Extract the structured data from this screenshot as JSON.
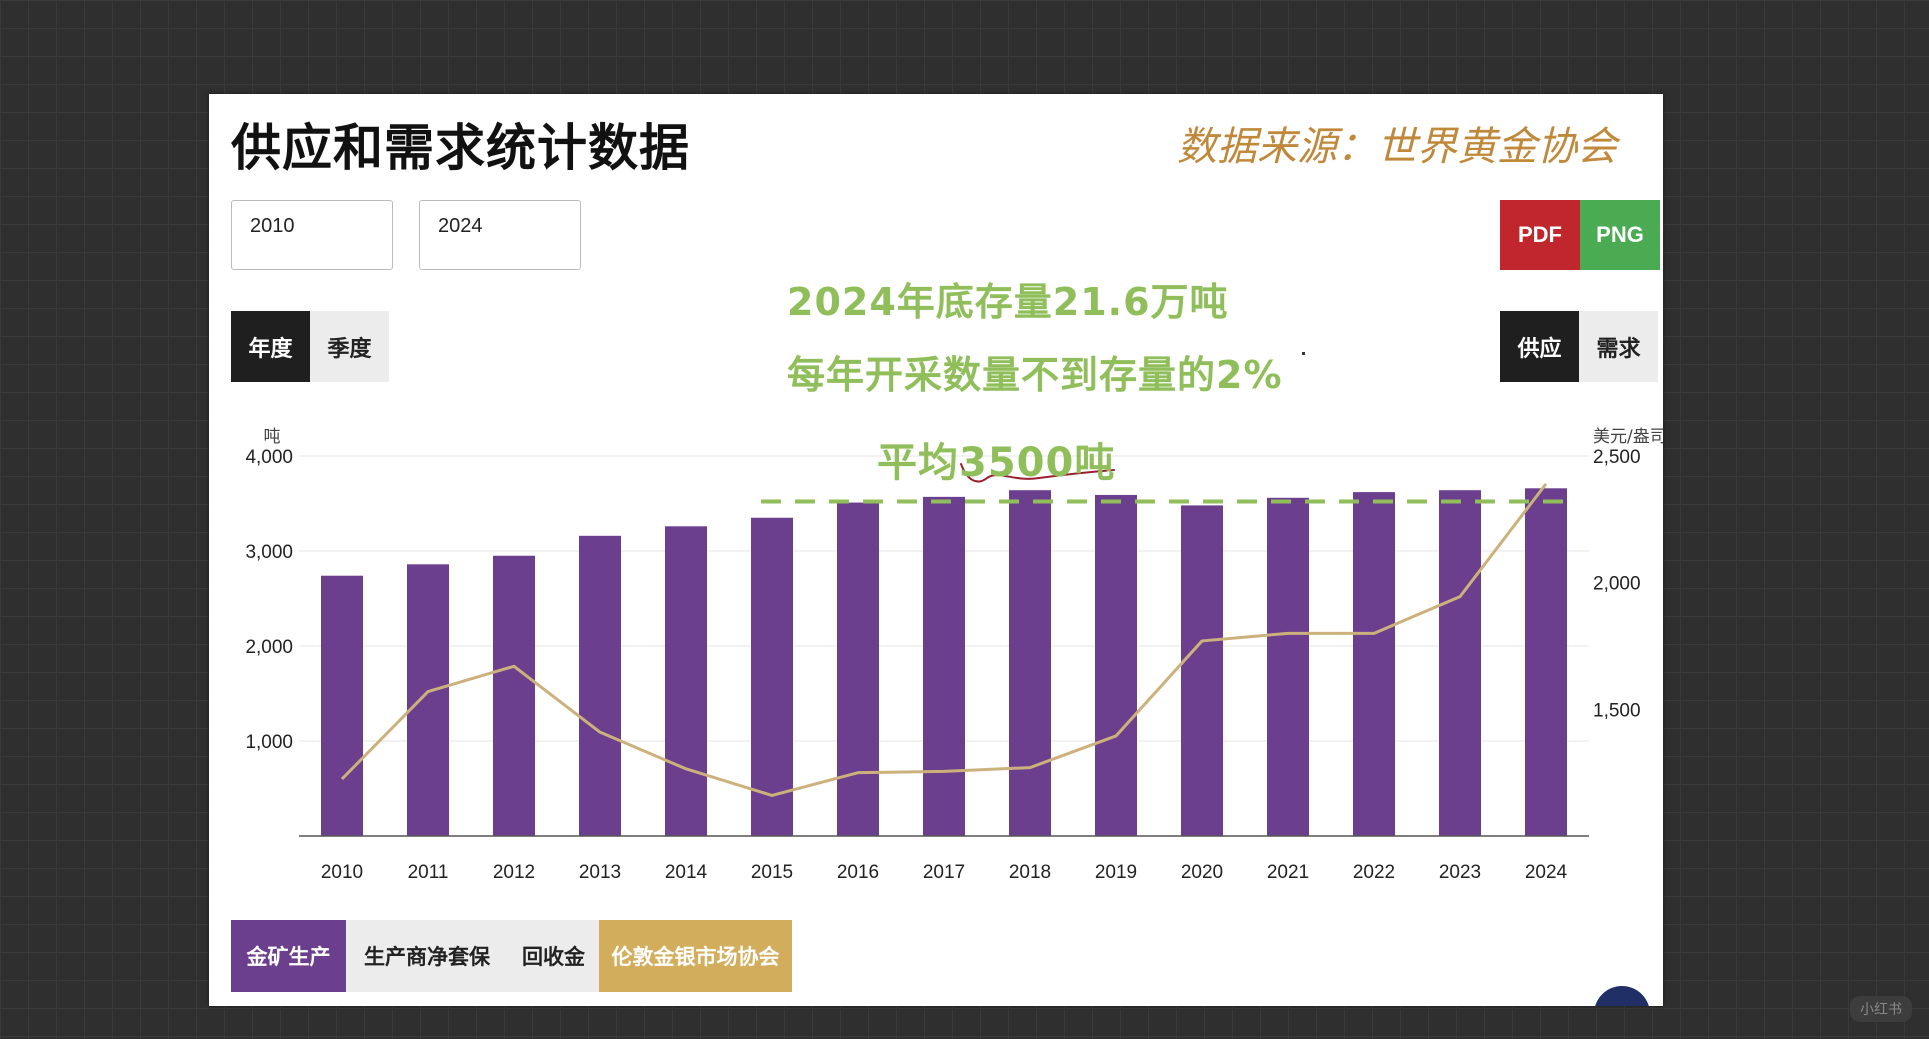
{
  "title": "供应和需求统计数据",
  "source": "数据来源：世界黄金协会",
  "inputs": {
    "start": "2010",
    "end": "2024"
  },
  "export": {
    "pdf": "PDF",
    "png": "PNG"
  },
  "period_toggle": {
    "annual": "年度",
    "quarterly": "季度"
  },
  "type_toggle": {
    "supply": "供应",
    "demand": "需求"
  },
  "notes": {
    "stock": "2024年底存量21.6万吨",
    "ratio": "每年开采数量不到存量的2%",
    "average": "平均3500吨"
  },
  "legend": {
    "mine": "金矿生产",
    "hedge": "生产商净套保",
    "recycle": "回收金",
    "lbma": "伦敦金银市场协会"
  },
  "watermark": "小红书",
  "colors": {
    "bar": "#6b3f8e",
    "line": "#cdb17c",
    "annotation": "#8fbe5a",
    "pdf": "#c0272d",
    "png": "#4bab52",
    "lbma": "#d2ae5c",
    "source": "#c0883a"
  },
  "chart_data": {
    "type": "bar",
    "categories": [
      "2010",
      "2011",
      "2012",
      "2013",
      "2014",
      "2015",
      "2016",
      "2017",
      "2018",
      "2019",
      "2020",
      "2021",
      "2022",
      "2023",
      "2024"
    ],
    "series": [
      {
        "name": "金矿生产",
        "axis": "left",
        "values": [
          2740,
          2860,
          2950,
          3160,
          3260,
          3350,
          3510,
          3570,
          3640,
          3590,
          3480,
          3560,
          3620,
          3640,
          3660
        ]
      },
      {
        "axis": "right",
        "type": "line",
        "values": [
          1225,
          1570,
          1670,
          1410,
          1265,
          1160,
          1250,
          1255,
          1270,
          1395,
          1770,
          1800,
          1800,
          1945,
          2390
        ]
      }
    ],
    "y_left": {
      "label": "吨",
      "ylim": [
        0,
        4000
      ],
      "ticks": [
        "1,000",
        "2,000",
        "3,000",
        "4,000"
      ],
      "tick_values": [
        1000,
        2000,
        3000,
        4000
      ]
    },
    "y_right": {
      "label": "美元/盎司",
      "ylim": [
        1000,
        2500
      ],
      "ticks": [
        "1,500",
        "2,000",
        "2,500"
      ],
      "tick_values": [
        1500,
        2000,
        2500
      ]
    },
    "average_line": {
      "value": 3500
    },
    "grid": true
  }
}
